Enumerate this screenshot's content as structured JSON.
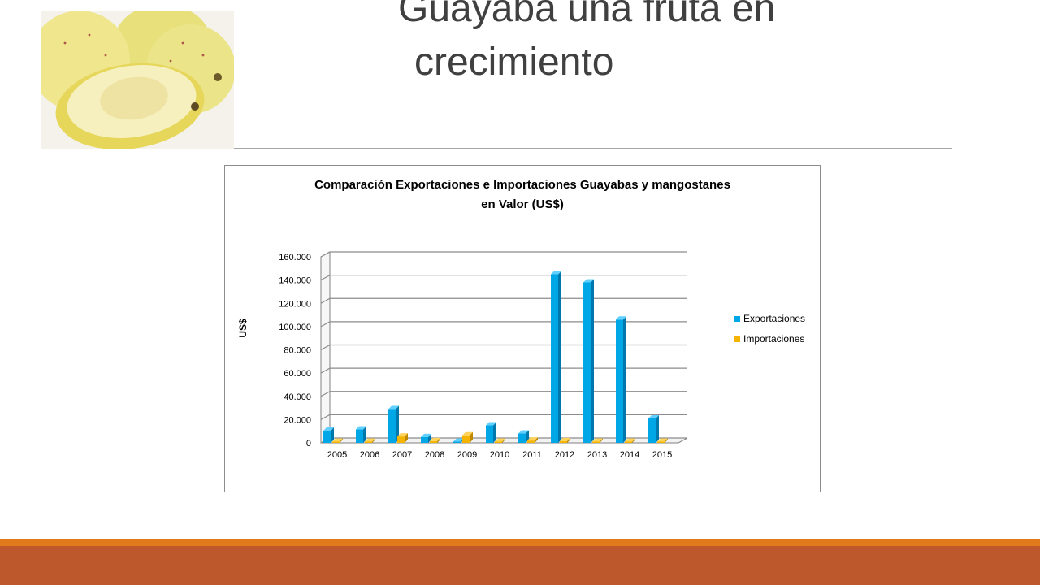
{
  "slide": {
    "title_line1": "Guayaba una fruta en",
    "title_line2": "crecimiento",
    "image": "guava-fruit-photo"
  },
  "colors": {
    "exports": "#00a7e6",
    "imports": "#f5b400",
    "accent_orange": "#e07a1a",
    "accent_rust": "#bd582c"
  },
  "chart_data": {
    "type": "bar",
    "title_line1": "Comparación Exportaciones e Importaciones Guayabas y mangostanes",
    "title_line2": "en Valor (US$)",
    "xlabel": "",
    "ylabel": "US$",
    "categories": [
      "2005",
      "2006",
      "2007",
      "2008",
      "2009",
      "2010",
      "2011",
      "2012",
      "2013",
      "2014",
      "2015"
    ],
    "series": [
      {
        "name": "Exportaciones",
        "values": [
          10500,
          11500,
          29000,
          5000,
          300,
          15000,
          8000,
          145000,
          138000,
          106000,
          21000
        ]
      },
      {
        "name": "Importaciones",
        "values": [
          0,
          0,
          5500,
          1500,
          6500,
          0,
          2000,
          1500,
          0,
          0,
          0
        ]
      }
    ],
    "yticks": [
      "0",
      "20.000",
      "40.000",
      "60.000",
      "80.000",
      "100.000",
      "120.000",
      "140.000",
      "160.000"
    ],
    "ylim": [
      0,
      160000
    ],
    "grid": true,
    "legend_position": "right",
    "style": "3d-columns"
  }
}
